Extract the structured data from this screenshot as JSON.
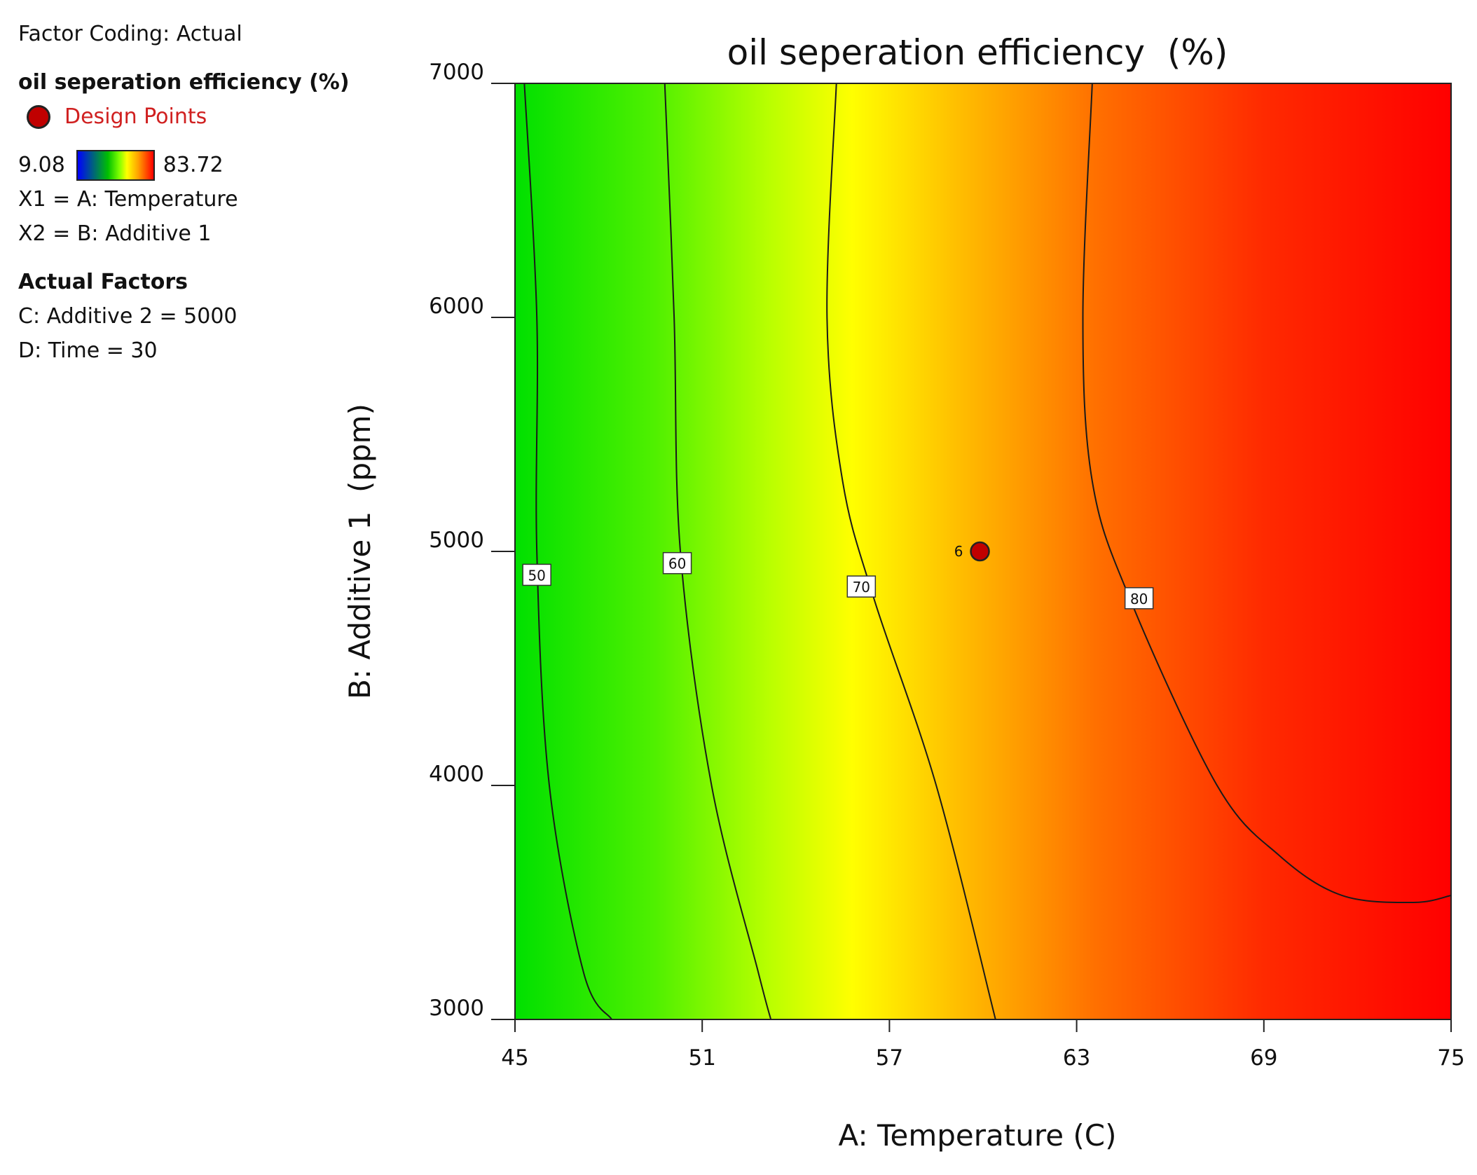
{
  "legend": {
    "factor_coding": "Factor Coding: Actual",
    "response_title": "oil seperation efficiency  (%)",
    "design_points_label": "Design Points",
    "design_point_color": "#c00000",
    "colorbar_min": "9.08",
    "colorbar_max": "83.72",
    "x1_label": "X1 = A: Temperature",
    "x2_label": "X2 = B: Additive 1",
    "actual_factors_heading": "Actual Factors",
    "factor_c": "C: Additive 2 = 5000",
    "factor_d": "D: Time = 30"
  },
  "chart_data": {
    "type": "contour",
    "title": "oil seperation efficiency  (%)",
    "xlabel": "A: Temperature (C)",
    "ylabel": "B: Additive 1  (ppm)",
    "xlim": [
      45,
      75
    ],
    "ylim": [
      3000,
      7000
    ],
    "x_ticks": [
      "45",
      "51",
      "57",
      "63",
      "69",
      "75"
    ],
    "y_ticks": [
      "3000",
      "4000",
      "5000",
      "6000",
      "7000"
    ],
    "colorscale": {
      "min": 9.08,
      "max": 83.72,
      "low_color": "#0000ff",
      "high_color": "#ff0000"
    },
    "contours": [
      {
        "level": "50",
        "points": [
          [
            45.3,
            7000
          ],
          [
            45.7,
            6000
          ],
          [
            45.7,
            5000
          ],
          [
            46.1,
            4000
          ],
          [
            47.2,
            3200
          ],
          [
            48.1,
            3000
          ]
        ]
      },
      {
        "level": "60",
        "points": [
          [
            49.8,
            7000
          ],
          [
            50.1,
            6000
          ],
          [
            50.3,
            5000
          ],
          [
            51.3,
            4000
          ],
          [
            52.8,
            3200
          ],
          [
            53.2,
            3000
          ]
        ]
      },
      {
        "level": "70",
        "points": [
          [
            55.3,
            7000
          ],
          [
            55.0,
            6000
          ],
          [
            55.5,
            5300
          ],
          [
            56.5,
            4800
          ],
          [
            58.5,
            4000
          ],
          [
            60.4,
            3000
          ]
        ]
      },
      {
        "level": "80",
        "points": [
          [
            63.5,
            7000
          ],
          [
            63.2,
            6000
          ],
          [
            63.5,
            5300
          ],
          [
            64.7,
            4800
          ],
          [
            67.5,
            4000
          ],
          [
            69.5,
            3700
          ],
          [
            71.5,
            3530
          ],
          [
            73.8,
            3500
          ],
          [
            75.0,
            3530
          ]
        ]
      }
    ],
    "contour_labels": [
      {
        "text": "50",
        "x": 45.7,
        "y": 4900
      },
      {
        "text": "60",
        "x": 50.2,
        "y": 4950
      },
      {
        "text": "70",
        "x": 56.1,
        "y": 4850
      },
      {
        "text": "80",
        "x": 65.0,
        "y": 4800
      }
    ],
    "design_points": [
      {
        "x": 59.9,
        "y": 5000,
        "count": "6"
      }
    ]
  }
}
